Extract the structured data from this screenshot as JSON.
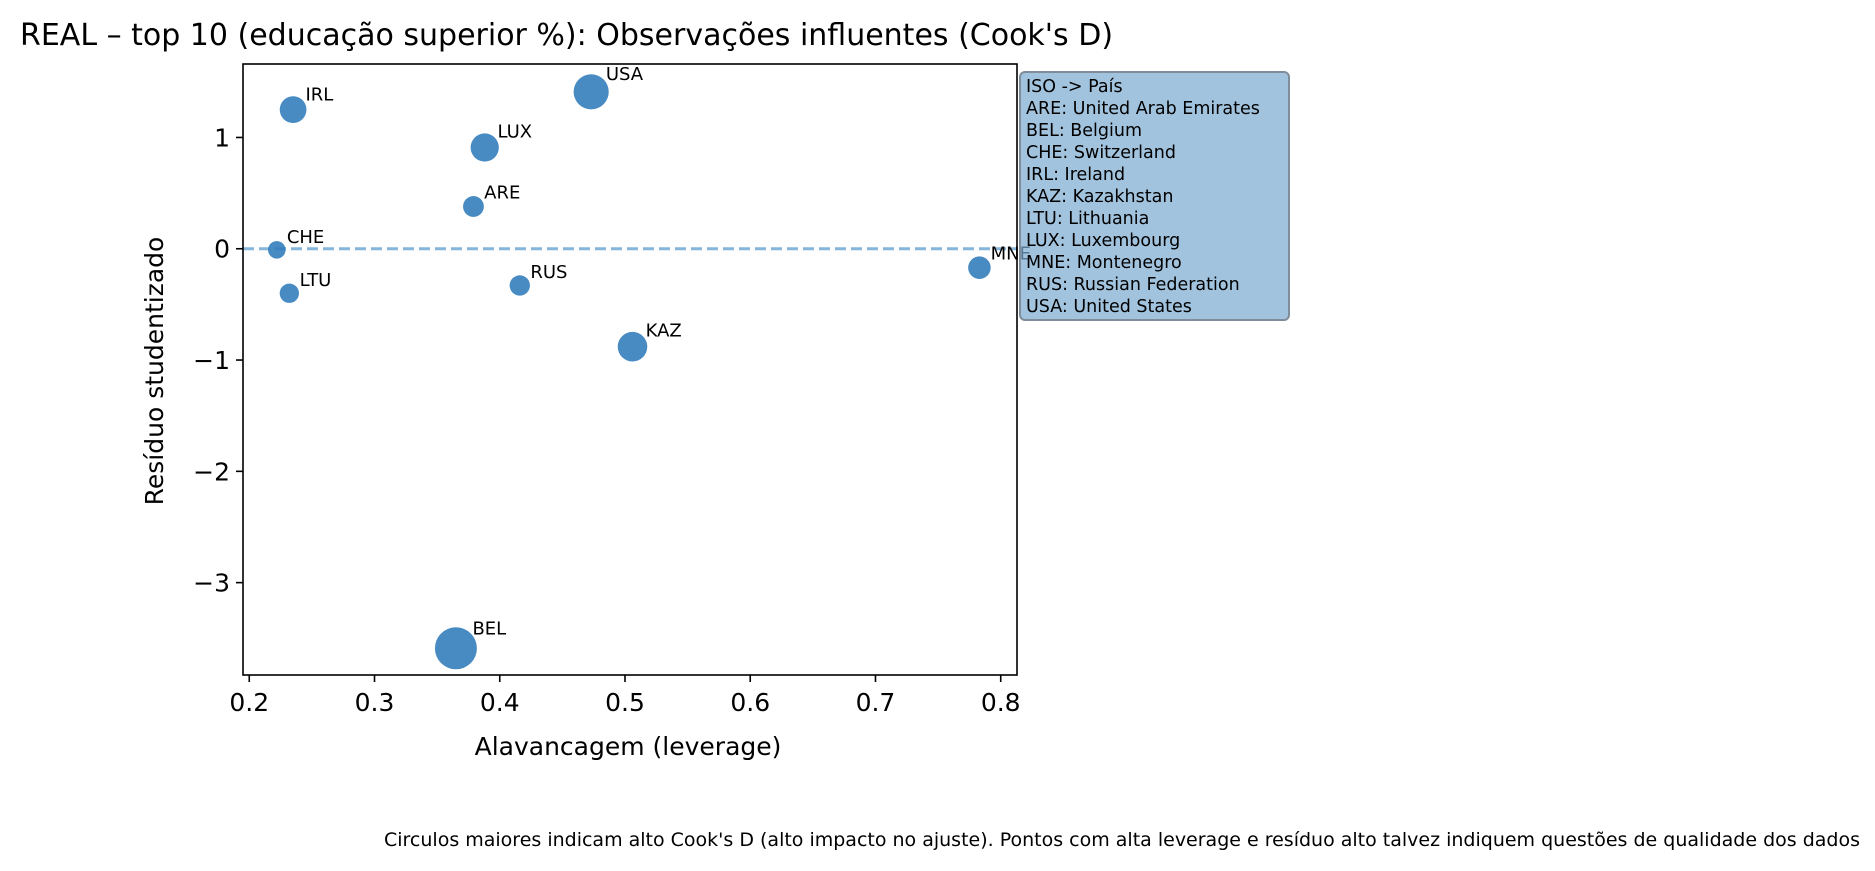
{
  "chart_data": {
    "type": "scatter",
    "title": "REAL – top 10 (educação superior %): Observações influentes (Cook's D)",
    "xlabel": "Alavancagem (leverage)",
    "ylabel": "Resíduo studentizado",
    "xlim": [
      0.195,
      0.813
    ],
    "ylim": [
      -3.83,
      1.66
    ],
    "xticks": [
      0.2,
      0.3,
      0.4,
      0.5,
      0.6,
      0.7,
      0.8
    ],
    "xtick_labels": [
      "0.2",
      "0.3",
      "0.4",
      "0.5",
      "0.6",
      "0.7",
      "0.8"
    ],
    "yticks": [
      1,
      0,
      -1,
      -2,
      -3
    ],
    "ytick_labels": [
      "1",
      "0",
      "−1",
      "−2",
      "−3"
    ],
    "reference_line": {
      "y": 0,
      "style": "dashed",
      "color": "#86b6dc"
    },
    "point_color": "#2f7bbb",
    "size_encodes": "Cook's D",
    "points": [
      {
        "label": "IRL",
        "x": 0.235,
        "y": 1.25,
        "cooks_d_rel": 0.28
      },
      {
        "label": "USA",
        "x": 0.473,
        "y": 1.41,
        "cooks_d_rel": 0.62
      },
      {
        "label": "LUX",
        "x": 0.388,
        "y": 0.91,
        "cooks_d_rel": 0.33
      },
      {
        "label": "ARE",
        "x": 0.379,
        "y": 0.38,
        "cooks_d_rel": 0.12
      },
      {
        "label": "CHE",
        "x": 0.222,
        "y": -0.01,
        "cooks_d_rel": 0.06
      },
      {
        "label": "LTU",
        "x": 0.232,
        "y": -0.4,
        "cooks_d_rel": 0.09
      },
      {
        "label": "RUS",
        "x": 0.416,
        "y": -0.33,
        "cooks_d_rel": 0.11
      },
      {
        "label": "MNE",
        "x": 0.783,
        "y": -0.17,
        "cooks_d_rel": 0.16
      },
      {
        "label": "KAZ",
        "x": 0.506,
        "y": -0.88,
        "cooks_d_rel": 0.38
      },
      {
        "label": "BEL",
        "x": 0.365,
        "y": -3.59,
        "cooks_d_rel": 1.0
      }
    ],
    "legend": {
      "title": "ISO -> País",
      "entries": [
        "ARE: United Arab Emirates",
        "BEL: Belgium",
        "CHE: Switzerland",
        "IRL: Ireland",
        "KAZ: Kazakhstan",
        "LTU: Lithuania",
        "LUX: Luxembourg",
        "MNE: Montenegro",
        "RUS: Russian Federation",
        "USA: United States"
      ]
    },
    "caption": "Circulos maiores indicam alto Cook's D (alto impacto no ajuste). Pontos com alta leverage e resíduo alto talvez indiquem questões de qualidade dos dados"
  }
}
